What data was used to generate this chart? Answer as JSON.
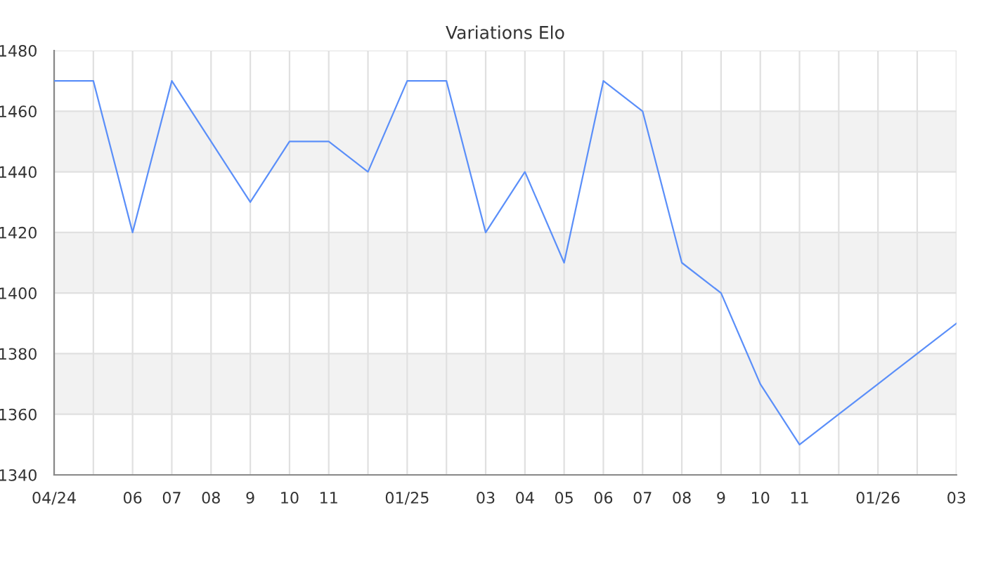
{
  "chart_data": {
    "type": "line",
    "title": "Variations Elo",
    "categories": [
      "04/24",
      null,
      "06",
      "07",
      "08",
      "9",
      "10",
      "11",
      null,
      "01/25",
      null,
      "03",
      "04",
      "05",
      "06",
      "07",
      "08",
      "9",
      "10",
      "11",
      null,
      "01/26",
      null,
      "03"
    ],
    "series": [
      {
        "color": "#5b8ff9",
        "values": [
          1470,
          1470,
          1420,
          1470,
          1450,
          1430,
          1450,
          1450,
          1440,
          1470,
          1470,
          1420,
          1440,
          1410,
          1470,
          1460,
          1410,
          1400,
          1370,
          1350,
          1360,
          1370,
          1380,
          1390
        ]
      }
    ],
    "ylim": [
      1340,
      1480
    ],
    "yticks": [
      1340,
      1360,
      1380,
      1400,
      1420,
      1440,
      1460,
      1480
    ],
    "bands": [
      {
        "axis": "y",
        "from": 1360,
        "to": 1380,
        "color": "#f2f2f2"
      },
      {
        "axis": "y",
        "from": 1400,
        "to": 1420,
        "color": "#f2f2f2"
      },
      {
        "axis": "y",
        "from": 1440,
        "to": 1460,
        "color": "#f2f2f2"
      }
    ],
    "grid": true,
    "legend": false,
    "marker": "none",
    "line_style": "solid"
  }
}
